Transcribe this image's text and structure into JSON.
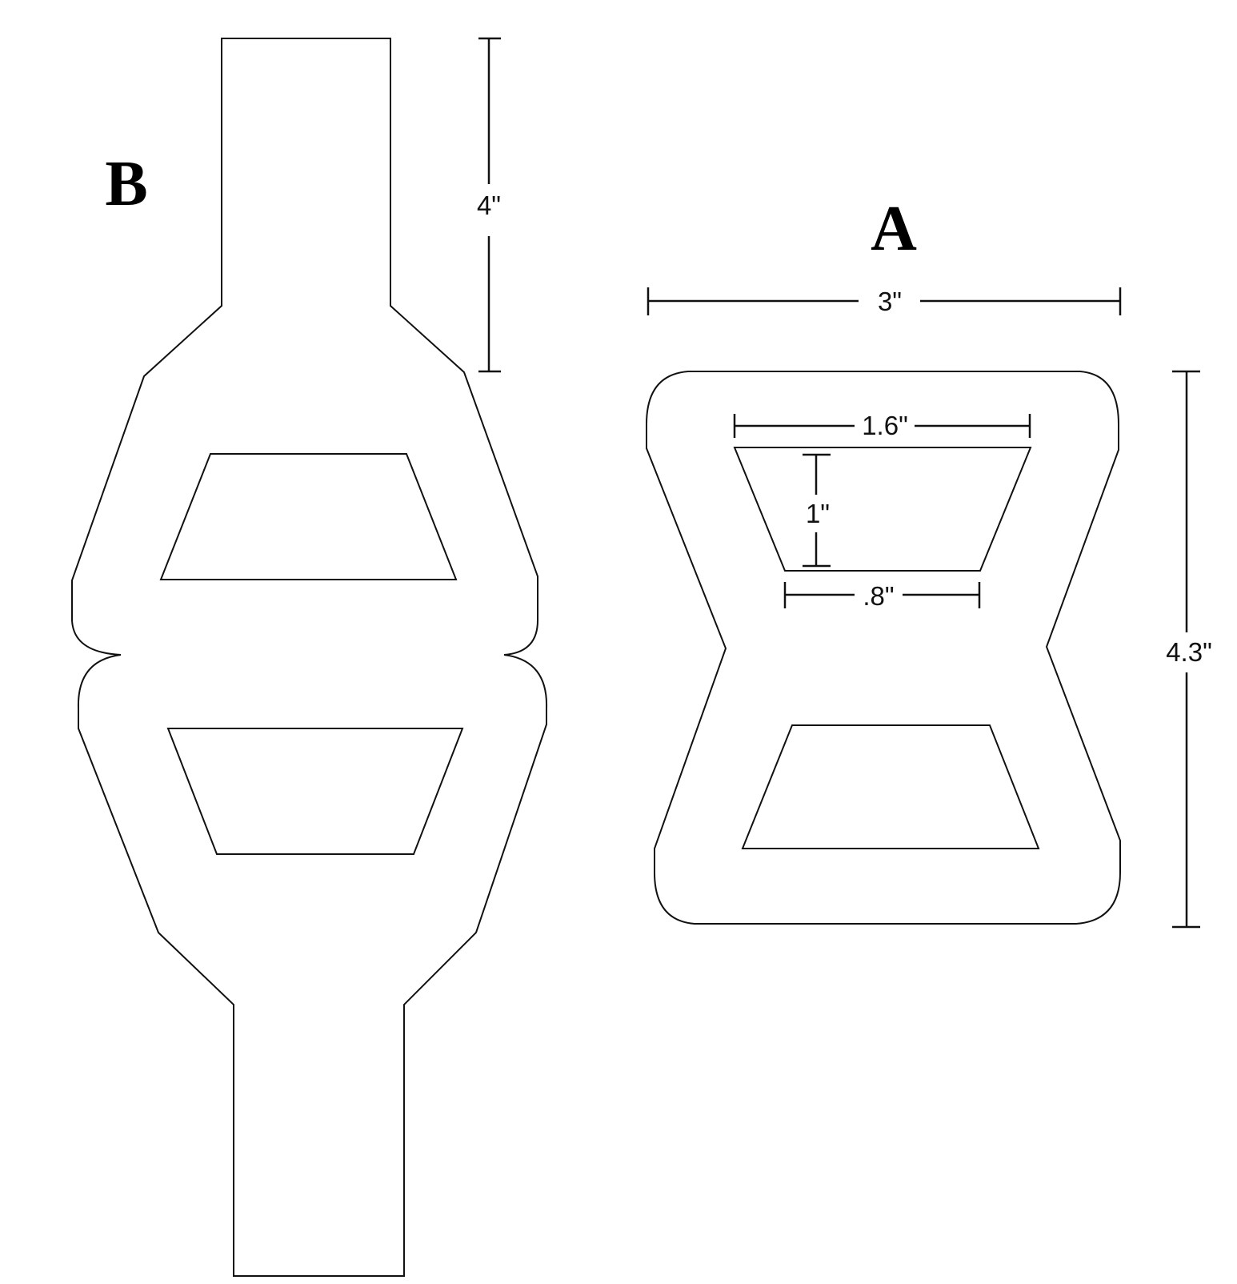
{
  "panels": {
    "a": {
      "label": "A"
    },
    "b": {
      "label": "B"
    }
  },
  "dimensions": {
    "b_tab_height": "4\"",
    "a_width": "3\"",
    "a_height": "4.3\"",
    "a_window_top_width": "1.6\"",
    "a_window_height": "1\"",
    "a_window_bottom_width": ".8\""
  },
  "colors": {
    "line": "#111111",
    "background": "#ffffff"
  }
}
